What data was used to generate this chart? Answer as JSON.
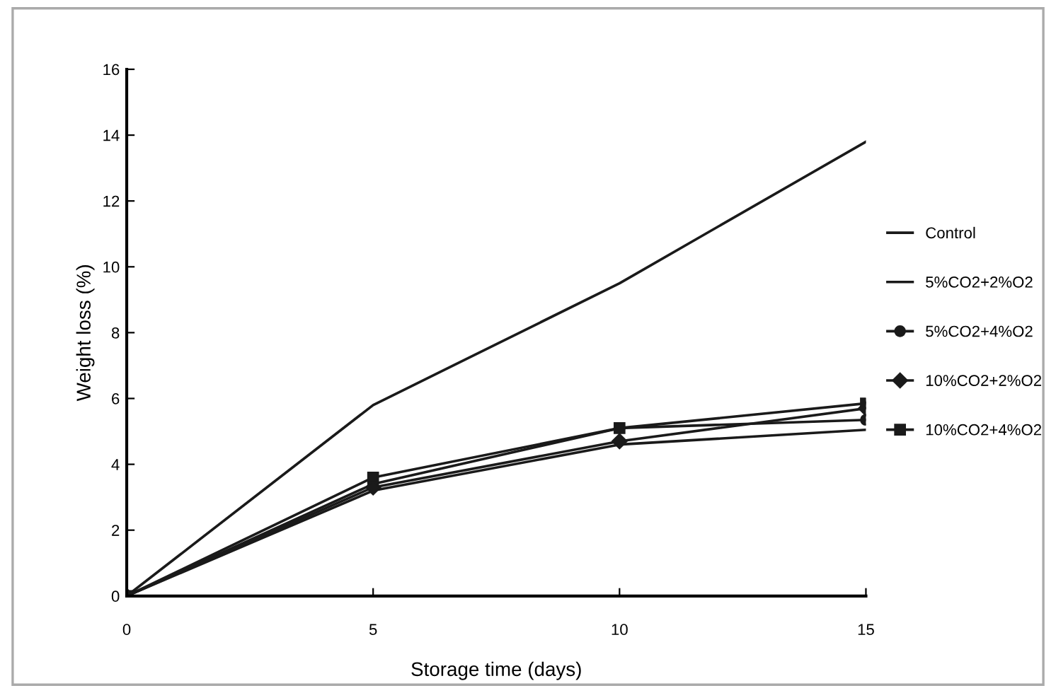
{
  "chart_data": {
    "type": "line",
    "xlabel": "Storage time (days)",
    "ylabel": "Weight loss (%)",
    "x": [
      0,
      5,
      10,
      15
    ],
    "series": [
      {
        "name": "Control",
        "color": "#1a1a1a",
        "marker": "none",
        "values": [
          0,
          5.8,
          9.5,
          13.8
        ]
      },
      {
        "name": "5%CO2+2%O2",
        "color": "#1a1a1a",
        "marker": "none",
        "values": [
          0,
          3.2,
          4.6,
          5.05
        ]
      },
      {
        "name": "5%CO2+4%O2",
        "color": "#1a1a1a",
        "marker": "circle",
        "values": [
          0,
          3.4,
          5.1,
          5.35
        ]
      },
      {
        "name": "10%CO2+2%O2",
        "color": "#1a1a1a",
        "marker": "diamond",
        "values": [
          0,
          3.3,
          4.7,
          5.7
        ]
      },
      {
        "name": "10%CO2+4%O2",
        "color": "#1a1a1a",
        "marker": "square",
        "values": [
          0,
          3.6,
          5.1,
          5.85
        ]
      }
    ],
    "xlim": [
      0,
      15
    ],
    "xticks": [
      0,
      5,
      10,
      15
    ],
    "ylim": [
      0,
      16
    ],
    "yticks": [
      0,
      2,
      4,
      6,
      8,
      10,
      12,
      14,
      16
    ],
    "grid": false,
    "legend": "right",
    "line_style": "solid"
  }
}
